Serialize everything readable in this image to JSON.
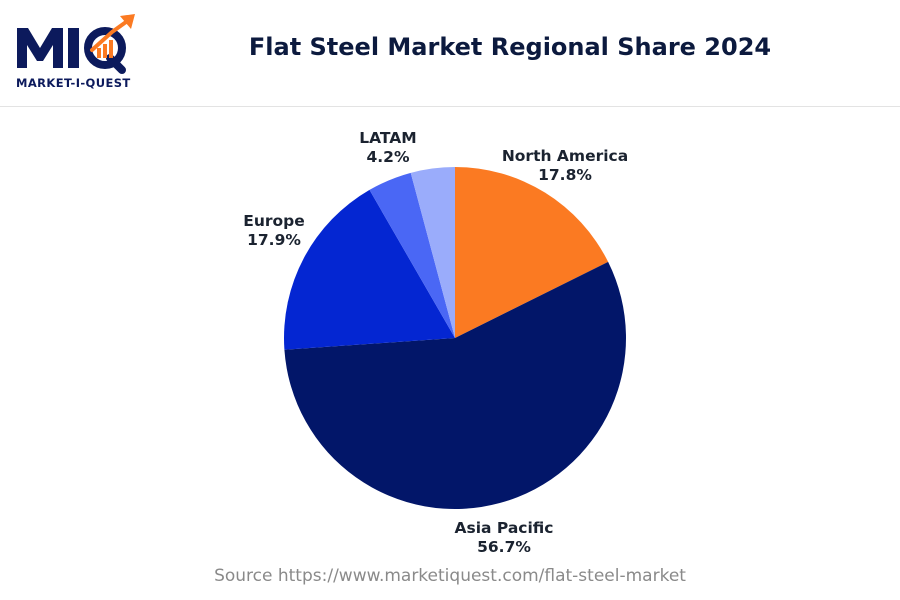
{
  "brand": {
    "logo_text": "MIQ",
    "tagline": "MARKET-I-QUEST"
  },
  "source_text": "Source https://www.marketiquest.com/flat-steel-market",
  "chart_data": {
    "type": "pie",
    "title": "Flat Steel Market Regional Share 2024",
    "start_angle_deg": 0,
    "direction": "clockwise",
    "slices": [
      {
        "name": "North America",
        "value": 17.8,
        "label": "17.8%",
        "color": "#fb7a22"
      },
      {
        "name": "Asia Pacific",
        "value": 56.7,
        "label": "56.7%",
        "color": "#021669"
      },
      {
        "name": "Europe",
        "value": 17.9,
        "label": "17.9%",
        "color": "#0426d2"
      },
      {
        "name": "",
        "value": 4.2,
        "label": "",
        "color": "#4a67f5"
      },
      {
        "name": "LATAM",
        "value": 4.2,
        "label": "4.2%",
        "color": "#9aacfb"
      }
    ]
  }
}
